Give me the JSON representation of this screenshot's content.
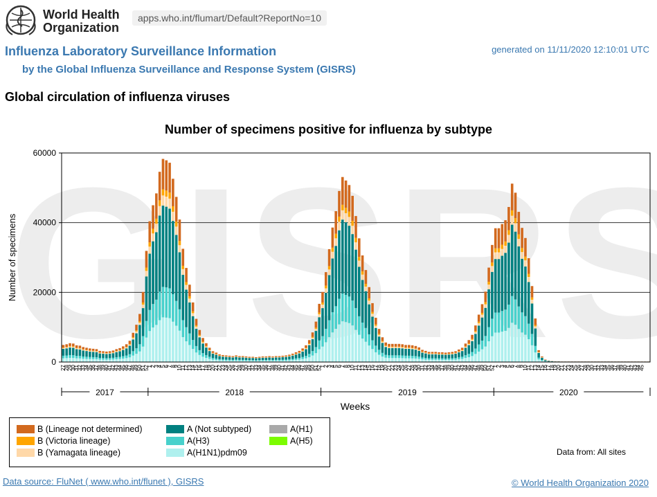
{
  "header": {
    "org_name_line1": "World Health",
    "org_name_line2": "Organization",
    "url": "apps.who.int/flumart/Default?ReportNo=10",
    "title": "Influenza Laboratory Surveillance Information",
    "subtitle": "by the Global Influenza Surveillance and Response System (GISRS)",
    "generated": "generated on 11/11/2020 12:10:01 UTC",
    "section_title": "Global circulation of influenza viruses"
  },
  "footer": {
    "data_source": "Data source: FluNet ( www.who.int/flunet ), GISRS",
    "copyright": "© World Health Organization 2020",
    "data_from": "Data from: All sites"
  },
  "colors": {
    "B_not_determined": "#d2691e",
    "B_victoria": "#ffa500",
    "B_yamagata": "#ffd8a8",
    "A_not_subtyped": "#008080",
    "A_H3": "#48d1cc",
    "A_H1N1pdm09": "#aff0ee",
    "A_H1": "#a9a9a9",
    "A_H5": "#7cfc00",
    "watermark": "#ededed",
    "header_blue": "#3a78b0"
  },
  "chart_data": {
    "type": "bar",
    "stacked": true,
    "title": "Number of specimens positive for influenza by subtype",
    "xlabel": "Weeks",
    "ylabel": "Number of specimens",
    "watermark": "GISRS",
    "ylim": [
      0,
      60000
    ],
    "yticks": [
      0,
      20000,
      40000,
      60000
    ],
    "grid": true,
    "legend_position": "bottom-left",
    "years": [
      {
        "label": "2017",
        "start_week_index": 0,
        "end_week_index": 25
      },
      {
        "label": "2018",
        "start_week_index": 26,
        "end_week_index": 77
      },
      {
        "label": "2019",
        "start_week_index": 78,
        "end_week_index": 129
      },
      {
        "label": "2020",
        "start_week_index": 130,
        "end_week_index": 174
      }
    ],
    "x_week_labels": [
      "27",
      "28",
      "29",
      "30",
      "31",
      "32",
      "33",
      "34",
      "35",
      "36",
      "37",
      "38",
      "39",
      "40",
      "41",
      "42",
      "43",
      "44",
      "45",
      "46",
      "47",
      "48",
      "49",
      "50",
      "51",
      "52",
      "1",
      "2",
      "3",
      "4",
      "5",
      "6",
      "7",
      "8",
      "9",
      "10",
      "11",
      "12",
      "13",
      "14",
      "15",
      "16",
      "17",
      "18",
      "19",
      "20",
      "21",
      "22",
      "23",
      "24",
      "25",
      "26",
      "27",
      "28",
      "29",
      "30",
      "31",
      "32",
      "33",
      "34",
      "35",
      "36",
      "37",
      "38",
      "39",
      "40",
      "41",
      "42",
      "43",
      "44",
      "45",
      "46",
      "47",
      "48",
      "49",
      "50",
      "51",
      "52",
      "1",
      "2",
      "3",
      "4",
      "5",
      "6",
      "7",
      "8",
      "9",
      "10",
      "11",
      "12",
      "13",
      "14",
      "15",
      "16",
      "17",
      "18",
      "19",
      "20",
      "21",
      "22",
      "23",
      "24",
      "25",
      "26",
      "27",
      "28",
      "29",
      "30",
      "31",
      "32",
      "33",
      "34",
      "35",
      "36",
      "37",
      "38",
      "39",
      "40",
      "41",
      "42",
      "43",
      "44",
      "45",
      "46",
      "47",
      "48",
      "49",
      "50",
      "51",
      "52",
      "1",
      "2",
      "3",
      "4",
      "5",
      "6",
      "7",
      "8",
      "9",
      "10",
      "11",
      "12",
      "13",
      "14",
      "15",
      "16",
      "17",
      "18",
      "19",
      "20",
      "21",
      "22",
      "23",
      "24",
      "25",
      "26",
      "27",
      "28",
      "29",
      "30",
      "31",
      "32",
      "33",
      "34",
      "35",
      "36",
      "37",
      "38",
      "39",
      "40",
      "41",
      "42",
      "43",
      "44",
      "45"
    ],
    "totals": [
      4900,
      5100,
      5400,
      5300,
      4800,
      4700,
      4300,
      4100,
      3900,
      3800,
      3700,
      3200,
      3100,
      3000,
      3100,
      3300,
      3700,
      4000,
      4500,
      5100,
      6100,
      8400,
      10700,
      13800,
      20100,
      31900,
      40400,
      45000,
      48400,
      54600,
      58300,
      57900,
      57200,
      52600,
      47400,
      40900,
      32500,
      27000,
      22200,
      17100,
      12400,
      9200,
      6900,
      5400,
      4100,
      3100,
      2700,
      2200,
      2000,
      1900,
      1800,
      1700,
      1900,
      1700,
      1700,
      1600,
      1500,
      1500,
      1400,
      1500,
      1600,
      1600,
      1700,
      1600,
      1700,
      1700,
      1800,
      1900,
      2100,
      2400,
      2800,
      3200,
      3900,
      4800,
      6300,
      8500,
      11600,
      16700,
      20100,
      25800,
      32400,
      38600,
      43300,
      49100,
      53100,
      52100,
      50800,
      47700,
      41900,
      35500,
      30600,
      26400,
      21500,
      16900,
      12700,
      9500,
      7100,
      5600,
      5200,
      5200,
      5200,
      5200,
      5100,
      4900,
      4900,
      4800,
      4600,
      4200,
      3500,
      3200,
      2900,
      2900,
      2900,
      2800,
      2800,
      2700,
      2800,
      2900,
      3100,
      3600,
      4100,
      5300,
      6300,
      7800,
      10500,
      13600,
      16600,
      20200,
      27100,
      33600,
      38400,
      38400,
      39600,
      40700,
      44500,
      51200,
      48600,
      43100,
      38500,
      35600,
      29800,
      21800,
      12500,
      3400,
      1600,
      700,
      400,
      300,
      200,
      200,
      150,
      150,
      150,
      150,
      150,
      150,
      150,
      150,
      150,
      150,
      150,
      150,
      150,
      150,
      150,
      150,
      150,
      150,
      150,
      150,
      150,
      150,
      150,
      150,
      150,
      150,
      150
    ]
  },
  "legend": [
    {
      "label": "B (Lineage not determined)",
      "color_key": "B_not_determined"
    },
    {
      "label": "B (Victoria lineage)",
      "color_key": "B_victoria"
    },
    {
      "label": "B (Yamagata lineage)",
      "color_key": "B_yamagata"
    },
    {
      "label": "A (Not subtyped)",
      "color_key": "A_not_subtyped"
    },
    {
      "label": "A(H3)",
      "color_key": "A_H3"
    },
    {
      "label": "A(H1N1)pdm09",
      "color_key": "A_H1N1pdm09"
    },
    {
      "label": "A(H1)",
      "color_key": "A_H1"
    },
    {
      "label": "A(H5)",
      "color_key": "A_H5"
    }
  ]
}
